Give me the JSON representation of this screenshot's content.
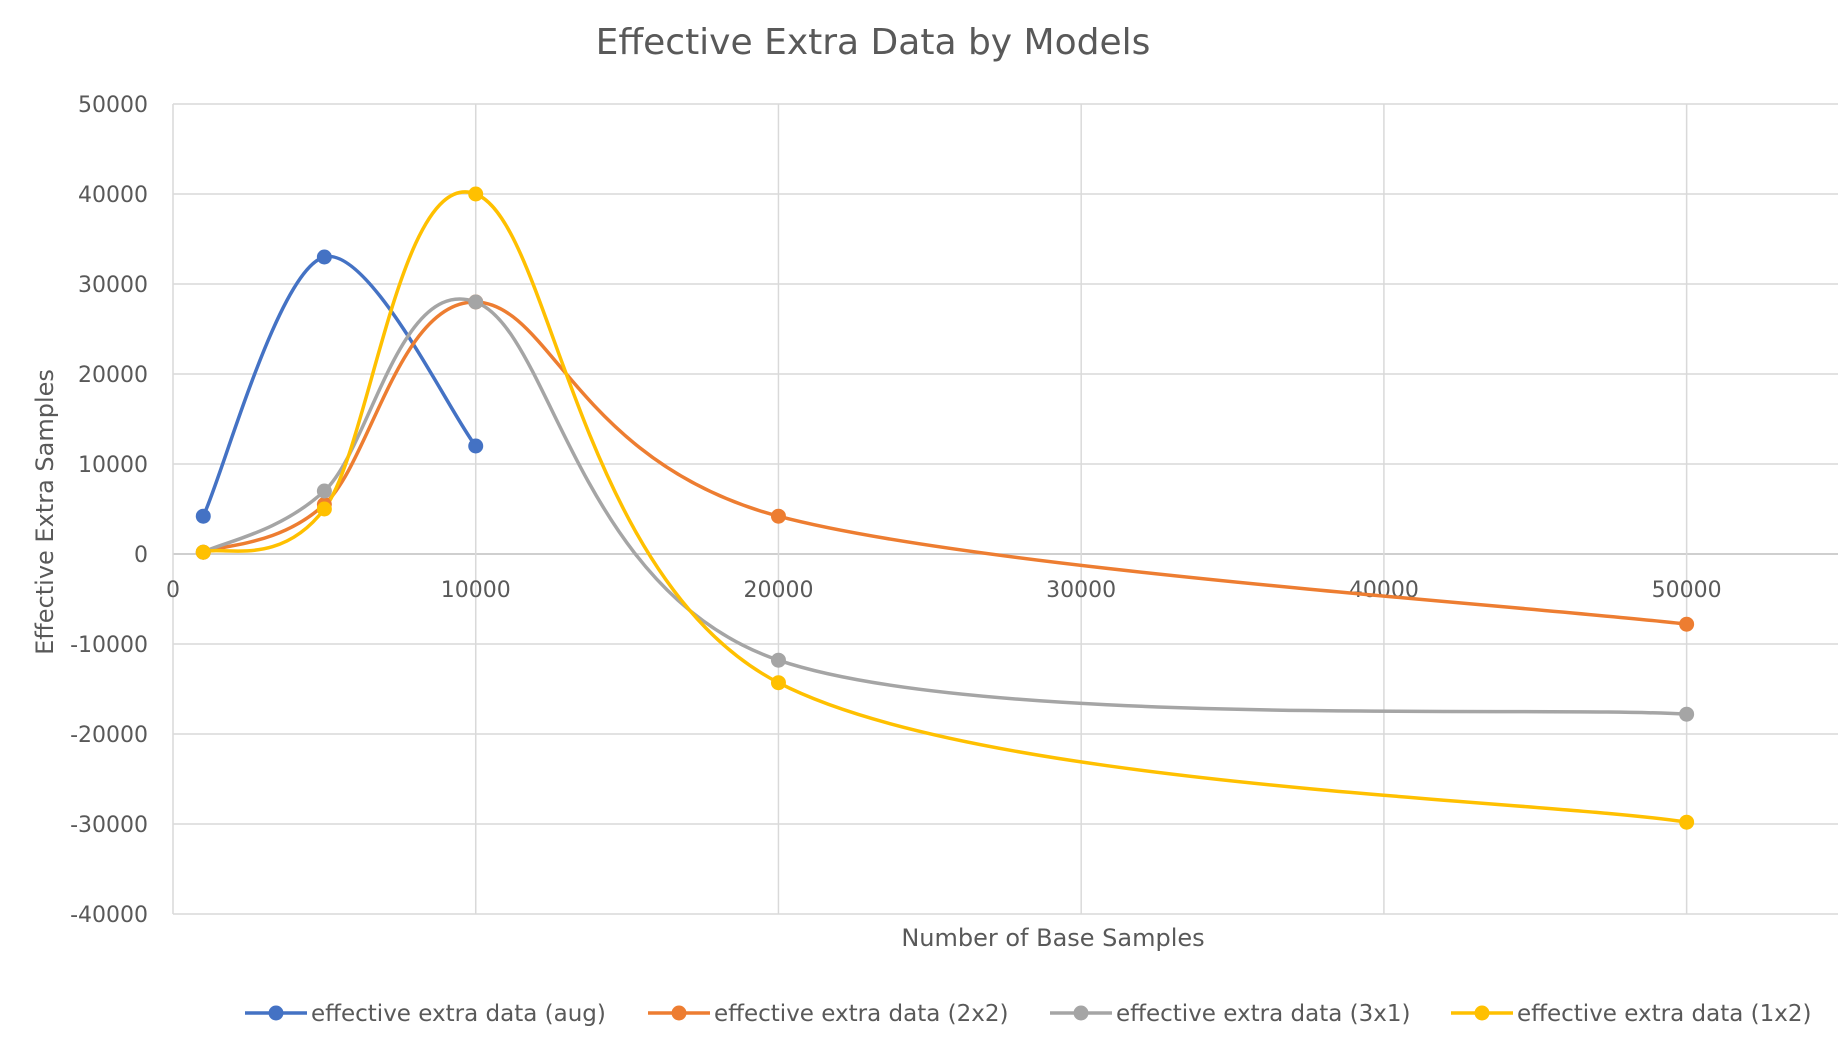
{
  "chart_data": {
    "type": "line",
    "title": "Effective Extra Data by Models",
    "xlabel": "Number of Base Samples",
    "ylabel": "Effective Extra Samples",
    "xlim": [
      0,
      55000
    ],
    "ylim": [
      -40000,
      50000
    ],
    "x_ticks": [
      0,
      10000,
      20000,
      30000,
      40000,
      50000
    ],
    "x_tick_labels": [
      "0",
      "10000",
      "20000",
      "30000",
      "40000",
      "50000"
    ],
    "y_ticks": [
      50000,
      40000,
      30000,
      20000,
      10000,
      0,
      -10000,
      -20000,
      -30000,
      -40000
    ],
    "y_tick_labels": [
      "50000",
      "40000",
      "30000",
      "20000",
      "10000",
      "0",
      "-10000",
      "-20000",
      "-30000",
      "-40000"
    ],
    "grid": true,
    "smooth": true,
    "legend_position": "bottom",
    "series": [
      {
        "name": "effective extra data (aug)",
        "color": "#4472c4",
        "x": [
          1000,
          5000,
          10000
        ],
        "y": [
          4200,
          33000,
          12000
        ]
      },
      {
        "name": "effective extra data (2x2)",
        "color": "#ed7d31",
        "x": [
          1000,
          5000,
          10000,
          20000,
          50000
        ],
        "y": [
          200,
          5500,
          28000,
          4200,
          -7800
        ]
      },
      {
        "name": "effective extra data (3x1)",
        "color": "#a5a5a5",
        "x": [
          1000,
          5000,
          10000,
          20000,
          50000
        ],
        "y": [
          200,
          7000,
          28000,
          -11800,
          -17800
        ]
      },
      {
        "name": "effective extra data (1x2)",
        "color": "#ffc000",
        "x": [
          1000,
          5000,
          10000,
          20000,
          50000
        ],
        "y": [
          200,
          5000,
          40000,
          -14300,
          -29800
        ]
      }
    ]
  }
}
